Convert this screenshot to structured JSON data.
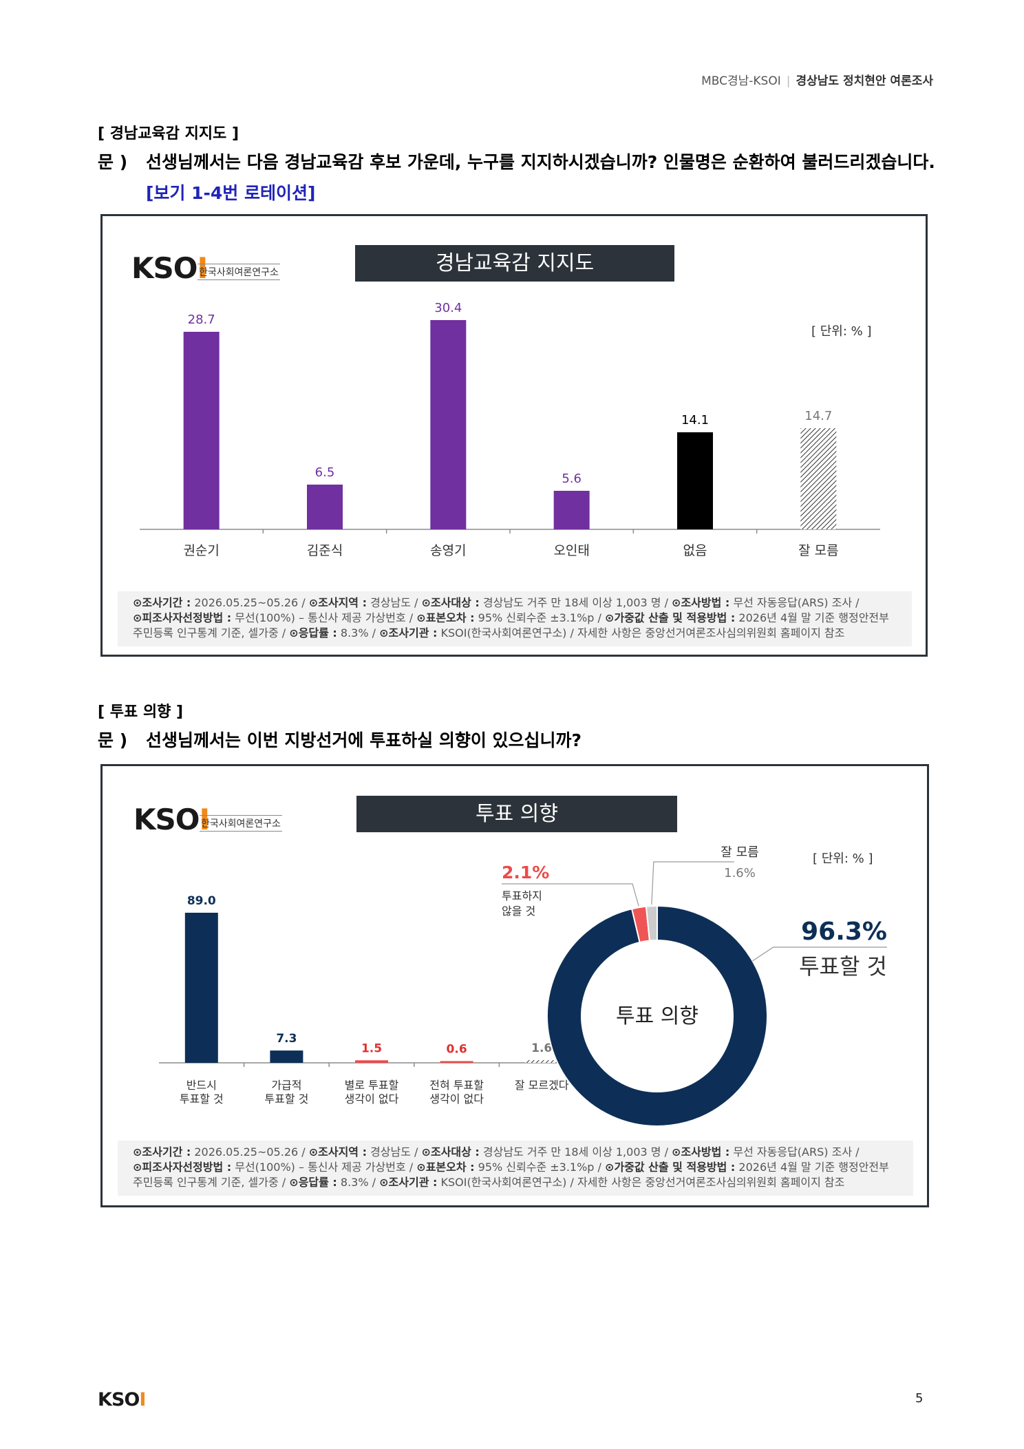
{
  "header": {
    "left": "MBC경남-KSOI",
    "right": "경상남도 정치현안 여론조사"
  },
  "section1": {
    "title": "[ 경남교육감 지지도 ]",
    "q_prefix": "문 )",
    "question": "선생님께서는 다음 경남교육감 후보 가운데, 누구를 지지하시겠습니까? 인물명은 순환하여 불러드리겠습니다.",
    "note": "[보기 1-4번 로테이션]"
  },
  "section2": {
    "title": "[ 투표 의향 ]",
    "q_prefix": "문 )",
    "question": "선생님께서는 이번 지방선거에 투표하실 의향이 있으십니까?"
  },
  "logo": {
    "text": "KSOI",
    "subtitle": "한국사회여론연구소"
  },
  "unit": "[ 단위: % ]",
  "footer": {
    "l1": [
      {
        "k": "⊙조사기간 :",
        "v": " 2026.05.25~05.26 / "
      },
      {
        "k": "⊙조사지역 :",
        "v": " 경상남도 / "
      },
      {
        "k": "⊙조사대상 :",
        "v": " 경상남도 거주 만 18세 이상 1,003 명 / "
      },
      {
        "k": "⊙조사방법 :",
        "v": " 무선 자동응답(ARS) 조사 /"
      }
    ],
    "l2": [
      {
        "k": "⊙피조사자선정방법 :",
        "v": " 무선(100%) – 통신사 제공 가상번호 / "
      },
      {
        "k": "⊙표본오차 :",
        "v": " 95% 신뢰수준 ±3.1%p / "
      },
      {
        "k": "⊙가중값 산출 및 적용방법 :",
        "v": " 2026년 4월 말 기준 행정안전부"
      }
    ],
    "l3": [
      {
        "k": "",
        "v": "주민등록 인구통계 기준, 셀가중 / "
      },
      {
        "k": "⊙응답률 :",
        "v": " 8.3% / "
      },
      {
        "k": "⊙조사기관 :",
        "v": " KSOI(한국사회여론연구소) / 자세한 사항은 중앙선거여론조사심의위원회 홈페이지 참조"
      }
    ]
  },
  "chart_data": [
    {
      "type": "bar",
      "title": "경남교육감 지지도",
      "unit": "[ 단위: % ]",
      "categories": [
        "권순기",
        "김준식",
        "송영기",
        "오인태",
        "없음",
        "잘 모름"
      ],
      "values": [
        28.7,
        6.5,
        30.4,
        5.6,
        14.1,
        14.7
      ],
      "labels": [
        "28.7",
        "6.5",
        "30.4",
        "5.6",
        "14.1",
        "14.7"
      ],
      "colors": [
        "#7030a0",
        "#7030a0",
        "#7030a0",
        "#7030a0",
        "#000000",
        "hatch"
      ],
      "label_colors": [
        "#7030a0",
        "#7030a0",
        "#7030a0",
        "#7030a0",
        "#000000",
        "#777777"
      ],
      "ylim": [
        0,
        34
      ]
    },
    {
      "type": "bar",
      "title": "투표 의향",
      "unit": "[ 단위: % ]",
      "categories": [
        [
          "반드시",
          "투표할 것"
        ],
        [
          "가급적",
          "투표할 것"
        ],
        [
          "별로 투표할",
          "생각이 없다"
        ],
        [
          "전혀 투표할",
          "생각이 없다"
        ],
        [
          "잘 모르겠다"
        ]
      ],
      "values": [
        89.0,
        7.3,
        1.5,
        0.6,
        1.6
      ],
      "labels": [
        "89.0",
        "7.3",
        "1.5",
        "0.6",
        "1.6"
      ],
      "colors": [
        "#0d2f57",
        "#0d2f57",
        "#ee4a4a",
        "#ee4a4a",
        "hatch"
      ],
      "label_colors": [
        "#0d2f57",
        "#0d2f57",
        "#e03030",
        "#e03030",
        "#777777"
      ],
      "ylim": [
        0,
        100
      ]
    },
    {
      "type": "pie",
      "title": "투표 의향",
      "center_label": "투표 의향",
      "slices": [
        {
          "name": "투표할 것",
          "value": 96.3,
          "label": "96.3%",
          "color": "#0d2f57"
        },
        {
          "name": "투표하지 않을 것",
          "lines": [
            "투표하지",
            "않을 것"
          ],
          "value": 2.1,
          "label": "2.1%",
          "color": "#f05555"
        },
        {
          "name": "잘 모름",
          "value": 1.6,
          "label": "1.6%",
          "color": "#cccccc"
        }
      ]
    }
  ],
  "page_number": "5"
}
